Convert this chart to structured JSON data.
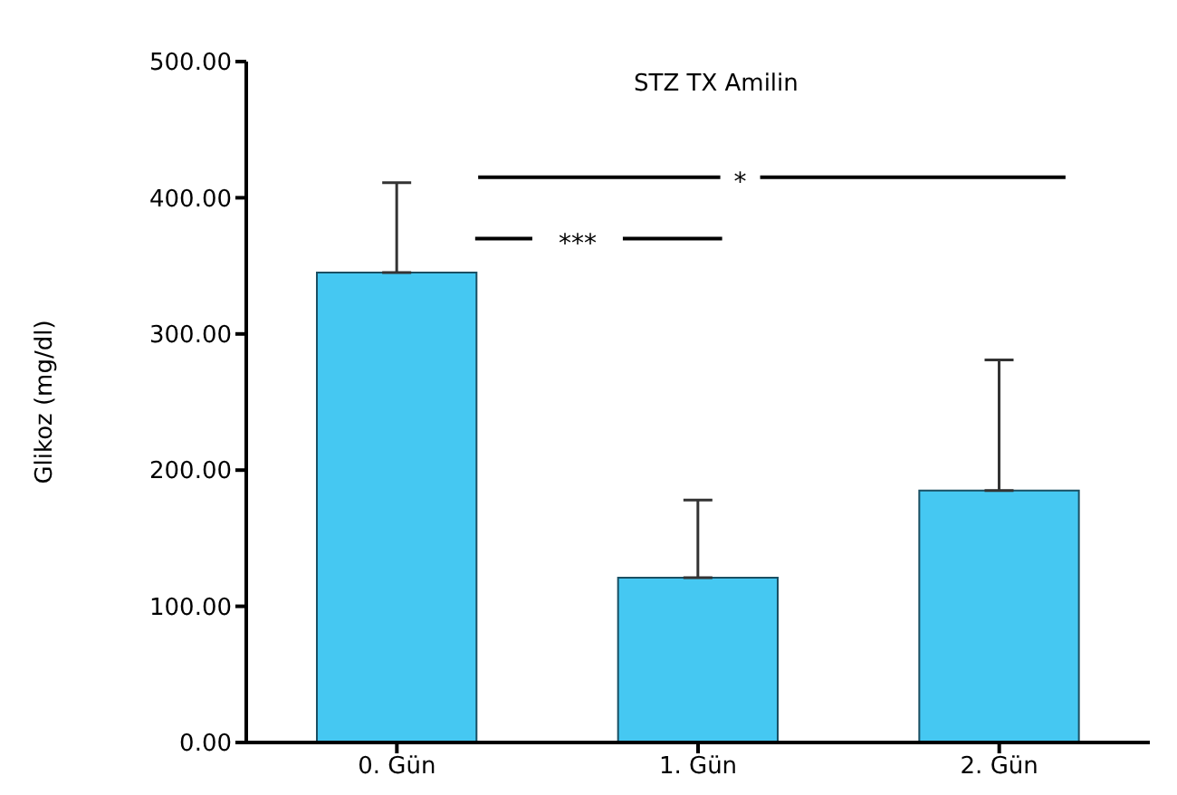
{
  "chart_data": {
    "type": "bar",
    "title": "STZ TX Amilin",
    "ylabel": "Glikoz (mg/dl)",
    "categories": [
      "0. Gün",
      "1. Gün",
      "2. Gün"
    ],
    "values": [
      345,
      121,
      185
    ],
    "color": "#45c8f2",
    "errors": [
      [
        345,
        411
      ],
      [
        121,
        178
      ],
      [
        185,
        281
      ]
    ],
    "ylim": [
      0,
      500
    ],
    "yticks": [
      {
        "value": 0,
        "label": "0.00"
      },
      {
        "value": 100,
        "label": "100.00"
      },
      {
        "value": 200,
        "label": "200.00"
      },
      {
        "value": 300,
        "label": "300.00"
      },
      {
        "value": 400,
        "label": "400.00"
      },
      {
        "value": 500,
        "label": "500.00"
      }
    ],
    "grid": false,
    "legend": false,
    "annotations": [
      "***",
      "*"
    ]
  }
}
